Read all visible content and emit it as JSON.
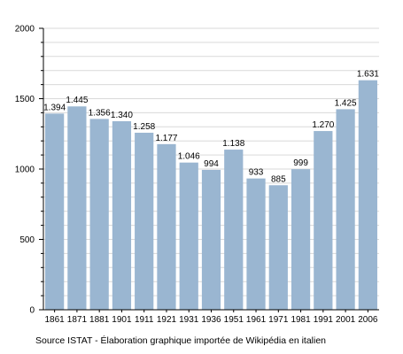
{
  "chart_data": {
    "type": "bar",
    "categories": [
      "1861",
      "1871",
      "1881",
      "1901",
      "1911",
      "1921",
      "1931",
      "1936",
      "1951",
      "1961",
      "1971",
      "1981",
      "1991",
      "2001",
      "2006"
    ],
    "values": [
      1394,
      1445,
      1356,
      1340,
      1258,
      1177,
      1046,
      994,
      1138,
      933,
      885,
      999,
      1270,
      1425,
      1631
    ],
    "data_labels": [
      "1.394",
      "1.445",
      "1.356",
      "1.340",
      "1.258",
      "1.177",
      "1.046",
      "994",
      "1.138",
      "933",
      "885",
      "999",
      "1.270",
      "1.425",
      "1.631"
    ],
    "ylim": [
      0,
      2000
    ],
    "yticks": [
      0,
      500,
      1000,
      1500,
      2000
    ],
    "grid": true,
    "bar_color": "#9ab6d1",
    "grid_color": "#d9d9d9"
  },
  "footer": {
    "source": "Source ISTAT - Élaboration graphique importée de Wikipédia en italien"
  }
}
